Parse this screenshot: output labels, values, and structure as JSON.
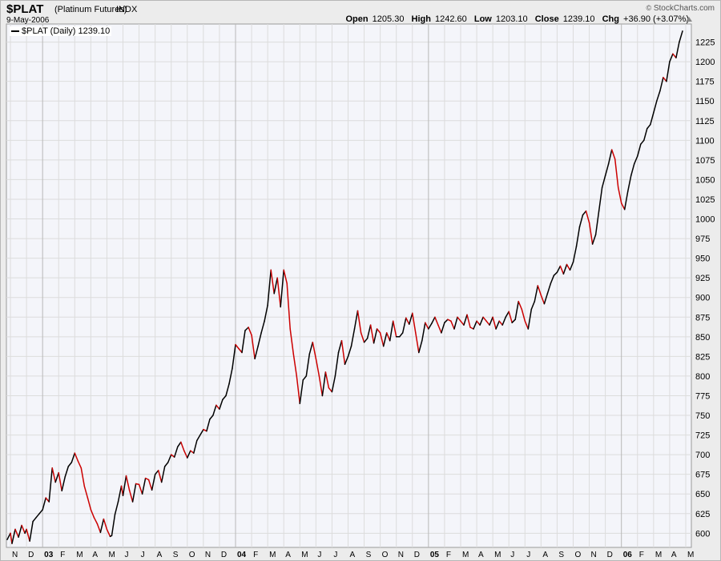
{
  "header": {
    "symbol": "$PLAT",
    "name": "(Platinum Futures)",
    "exchange": "INDX",
    "date": "9-May-2006",
    "brand": "StockCharts.com",
    "copyright": "©",
    "ohlc": {
      "open_label": "Open",
      "open": "1205.30",
      "high_label": "High",
      "high": "1242.60",
      "low_label": "Low",
      "low": "1203.10",
      "close_label": "Close",
      "close": "1239.10",
      "chg_label": "Chg",
      "chg": "+36.90 (+3.07%)"
    }
  },
  "legend": {
    "label": "$PLAT (Daily) 1239.10"
  },
  "colors": {
    "up": "#000000",
    "down": "#cc0000",
    "grid": "#dcdcdc",
    "plot_bg": "#f4f5fa"
  },
  "chart_data": {
    "type": "line",
    "title": "$PLAT (Platinum Futures) INDX",
    "xlabel": "",
    "ylabel": "",
    "ylim": [
      582,
      1248
    ],
    "yticks": [
      600,
      625,
      650,
      675,
      700,
      725,
      750,
      775,
      800,
      825,
      850,
      875,
      900,
      925,
      950,
      975,
      1000,
      1025,
      1050,
      1075,
      1100,
      1125,
      1150,
      1175,
      1200,
      1225
    ],
    "xticks": [
      {
        "label": "N",
        "x": 0
      },
      {
        "label": "D",
        "x": 1
      },
      {
        "label": "03",
        "x": 2,
        "major": true
      },
      {
        "label": "F",
        "x": 3
      },
      {
        "label": "M",
        "x": 4
      },
      {
        "label": "A",
        "x": 5
      },
      {
        "label": "M",
        "x": 6
      },
      {
        "label": "J",
        "x": 7
      },
      {
        "label": "J",
        "x": 8
      },
      {
        "label": "A",
        "x": 9
      },
      {
        "label": "S",
        "x": 10
      },
      {
        "label": "O",
        "x": 11
      },
      {
        "label": "N",
        "x": 12
      },
      {
        "label": "D",
        "x": 13
      },
      {
        "label": "04",
        "x": 14,
        "major": true
      },
      {
        "label": "F",
        "x": 15
      },
      {
        "label": "M",
        "x": 16
      },
      {
        "label": "A",
        "x": 17
      },
      {
        "label": "M",
        "x": 18
      },
      {
        "label": "J",
        "x": 19
      },
      {
        "label": "J",
        "x": 20
      },
      {
        "label": "A",
        "x": 21
      },
      {
        "label": "S",
        "x": 22
      },
      {
        "label": "O",
        "x": 23
      },
      {
        "label": "N",
        "x": 24
      },
      {
        "label": "D",
        "x": 25
      },
      {
        "label": "05",
        "x": 26,
        "major": true
      },
      {
        "label": "F",
        "x": 27
      },
      {
        "label": "M",
        "x": 28
      },
      {
        "label": "A",
        "x": 29
      },
      {
        "label": "M",
        "x": 30
      },
      {
        "label": "J",
        "x": 31
      },
      {
        "label": "J",
        "x": 32
      },
      {
        "label": "A",
        "x": 33
      },
      {
        "label": "S",
        "x": 34
      },
      {
        "label": "O",
        "x": 35
      },
      {
        "label": "N",
        "x": 36
      },
      {
        "label": "D",
        "x": 37
      },
      {
        "label": "06",
        "x": 38,
        "major": true
      },
      {
        "label": "F",
        "x": 39
      },
      {
        "label": "M",
        "x": 40
      },
      {
        "label": "A",
        "x": 41
      },
      {
        "label": "M",
        "x": 42
      }
    ],
    "xlim": [
      -0.25,
      42.35
    ],
    "series": [
      {
        "name": "$PLAT (Daily)",
        "points": [
          [
            -0.2,
            592
          ],
          [
            0.0,
            600
          ],
          [
            0.1,
            587
          ],
          [
            0.3,
            605
          ],
          [
            0.5,
            595
          ],
          [
            0.7,
            610
          ],
          [
            0.9,
            600
          ],
          [
            1.0,
            605
          ],
          [
            1.2,
            590
          ],
          [
            1.4,
            615
          ],
          [
            1.6,
            620
          ],
          [
            1.8,
            625
          ],
          [
            2.0,
            630
          ],
          [
            2.2,
            645
          ],
          [
            2.4,
            640
          ],
          [
            2.6,
            683
          ],
          [
            2.8,
            665
          ],
          [
            3.0,
            677
          ],
          [
            3.2,
            654
          ],
          [
            3.4,
            672
          ],
          [
            3.6,
            685
          ],
          [
            3.8,
            690
          ],
          [
            4.0,
            702
          ],
          [
            4.2,
            692
          ],
          [
            4.4,
            683
          ],
          [
            4.6,
            660
          ],
          [
            4.8,
            645
          ],
          [
            5.0,
            630
          ],
          [
            5.2,
            620
          ],
          [
            5.4,
            612
          ],
          [
            5.6,
            601
          ],
          [
            5.8,
            618
          ],
          [
            6.0,
            605
          ],
          [
            6.2,
            596
          ],
          [
            6.3,
            597
          ],
          [
            6.5,
            624
          ],
          [
            6.7,
            640
          ],
          [
            6.9,
            660
          ],
          [
            7.0,
            648
          ],
          [
            7.2,
            673
          ],
          [
            7.4,
            655
          ],
          [
            7.6,
            640
          ],
          [
            7.8,
            663
          ],
          [
            8.0,
            662
          ],
          [
            8.2,
            650
          ],
          [
            8.4,
            670
          ],
          [
            8.6,
            668
          ],
          [
            8.8,
            655
          ],
          [
            9.0,
            675
          ],
          [
            9.2,
            680
          ],
          [
            9.4,
            665
          ],
          [
            9.6,
            685
          ],
          [
            9.8,
            690
          ],
          [
            10.0,
            700
          ],
          [
            10.2,
            697
          ],
          [
            10.4,
            710
          ],
          [
            10.6,
            716
          ],
          [
            10.8,
            705
          ],
          [
            11.0,
            696
          ],
          [
            11.2,
            705
          ],
          [
            11.4,
            702
          ],
          [
            11.6,
            718
          ],
          [
            11.8,
            725
          ],
          [
            12.0,
            732
          ],
          [
            12.2,
            730
          ],
          [
            12.4,
            745
          ],
          [
            12.6,
            750
          ],
          [
            12.8,
            763
          ],
          [
            13.0,
            758
          ],
          [
            13.2,
            770
          ],
          [
            13.4,
            775
          ],
          [
            13.6,
            790
          ],
          [
            13.8,
            810
          ],
          [
            14.0,
            840
          ],
          [
            14.2,
            835
          ],
          [
            14.4,
            830
          ],
          [
            14.6,
            858
          ],
          [
            14.8,
            862
          ],
          [
            15.0,
            852
          ],
          [
            15.2,
            822
          ],
          [
            15.4,
            838
          ],
          [
            15.6,
            855
          ],
          [
            15.8,
            870
          ],
          [
            16.0,
            890
          ],
          [
            16.2,
            935
          ],
          [
            16.4,
            905
          ],
          [
            16.6,
            925
          ],
          [
            16.8,
            888
          ],
          [
            17.0,
            935
          ],
          [
            17.2,
            918
          ],
          [
            17.4,
            860
          ],
          [
            17.6,
            828
          ],
          [
            17.8,
            800
          ],
          [
            18.0,
            765
          ],
          [
            18.2,
            795
          ],
          [
            18.4,
            800
          ],
          [
            18.6,
            828
          ],
          [
            18.8,
            843
          ],
          [
            19.0,
            822
          ],
          [
            19.2,
            800
          ],
          [
            19.4,
            775
          ],
          [
            19.6,
            805
          ],
          [
            19.8,
            785
          ],
          [
            20.0,
            780
          ],
          [
            20.2,
            800
          ],
          [
            20.4,
            830
          ],
          [
            20.6,
            845
          ],
          [
            20.8,
            815
          ],
          [
            21.0,
            825
          ],
          [
            21.2,
            838
          ],
          [
            21.4,
            860
          ],
          [
            21.6,
            883
          ],
          [
            21.8,
            855
          ],
          [
            22.0,
            843
          ],
          [
            22.2,
            848
          ],
          [
            22.4,
            865
          ],
          [
            22.6,
            842
          ],
          [
            22.8,
            860
          ],
          [
            23.0,
            855
          ],
          [
            23.2,
            838
          ],
          [
            23.4,
            855
          ],
          [
            23.6,
            845
          ],
          [
            23.8,
            870
          ],
          [
            24.0,
            850
          ],
          [
            24.2,
            850
          ],
          [
            24.4,
            855
          ],
          [
            24.6,
            874
          ],
          [
            24.8,
            866
          ],
          [
            25.0,
            880
          ],
          [
            25.2,
            855
          ],
          [
            25.4,
            830
          ],
          [
            25.6,
            845
          ],
          [
            25.8,
            868
          ],
          [
            26.0,
            860
          ],
          [
            26.2,
            867
          ],
          [
            26.4,
            875
          ],
          [
            26.6,
            865
          ],
          [
            26.8,
            855
          ],
          [
            27.0,
            868
          ],
          [
            27.2,
            872
          ],
          [
            27.4,
            870
          ],
          [
            27.6,
            860
          ],
          [
            27.8,
            875
          ],
          [
            28.0,
            870
          ],
          [
            28.2,
            865
          ],
          [
            28.4,
            878
          ],
          [
            28.6,
            862
          ],
          [
            28.8,
            860
          ],
          [
            29.0,
            870
          ],
          [
            29.2,
            865
          ],
          [
            29.4,
            875
          ],
          [
            29.6,
            870
          ],
          [
            29.8,
            865
          ],
          [
            30.0,
            875
          ],
          [
            30.2,
            860
          ],
          [
            30.4,
            870
          ],
          [
            30.6,
            865
          ],
          [
            30.8,
            875
          ],
          [
            31.0,
            882
          ],
          [
            31.2,
            868
          ],
          [
            31.4,
            872
          ],
          [
            31.6,
            895
          ],
          [
            31.8,
            885
          ],
          [
            32.0,
            870
          ],
          [
            32.2,
            860
          ],
          [
            32.4,
            885
          ],
          [
            32.6,
            895
          ],
          [
            32.8,
            915
          ],
          [
            33.0,
            903
          ],
          [
            33.2,
            892
          ],
          [
            33.4,
            905
          ],
          [
            33.6,
            918
          ],
          [
            33.8,
            928
          ],
          [
            34.0,
            932
          ],
          [
            34.2,
            940
          ],
          [
            34.4,
            930
          ],
          [
            34.6,
            942
          ],
          [
            34.8,
            935
          ],
          [
            35.0,
            945
          ],
          [
            35.2,
            965
          ],
          [
            35.4,
            990
          ],
          [
            35.6,
            1005
          ],
          [
            35.8,
            1010
          ],
          [
            36.0,
            995
          ],
          [
            36.2,
            968
          ],
          [
            36.4,
            980
          ],
          [
            36.6,
            1010
          ],
          [
            36.8,
            1040
          ],
          [
            37.0,
            1055
          ],
          [
            37.2,
            1070
          ],
          [
            37.4,
            1088
          ],
          [
            37.6,
            1076
          ],
          [
            37.8,
            1040
          ],
          [
            38.0,
            1020
          ],
          [
            38.2,
            1012
          ],
          [
            38.4,
            1035
          ],
          [
            38.6,
            1055
          ],
          [
            38.8,
            1070
          ],
          [
            39.0,
            1080
          ],
          [
            39.2,
            1095
          ],
          [
            39.4,
            1100
          ],
          [
            39.6,
            1115
          ],
          [
            39.8,
            1120
          ],
          [
            40.0,
            1135
          ],
          [
            40.2,
            1150
          ],
          [
            40.4,
            1163
          ],
          [
            40.6,
            1180
          ],
          [
            40.8,
            1175
          ],
          [
            41.0,
            1200
          ],
          [
            41.2,
            1210
          ],
          [
            41.4,
            1205
          ],
          [
            41.6,
            1225
          ],
          [
            41.8,
            1239
          ]
        ]
      }
    ]
  }
}
